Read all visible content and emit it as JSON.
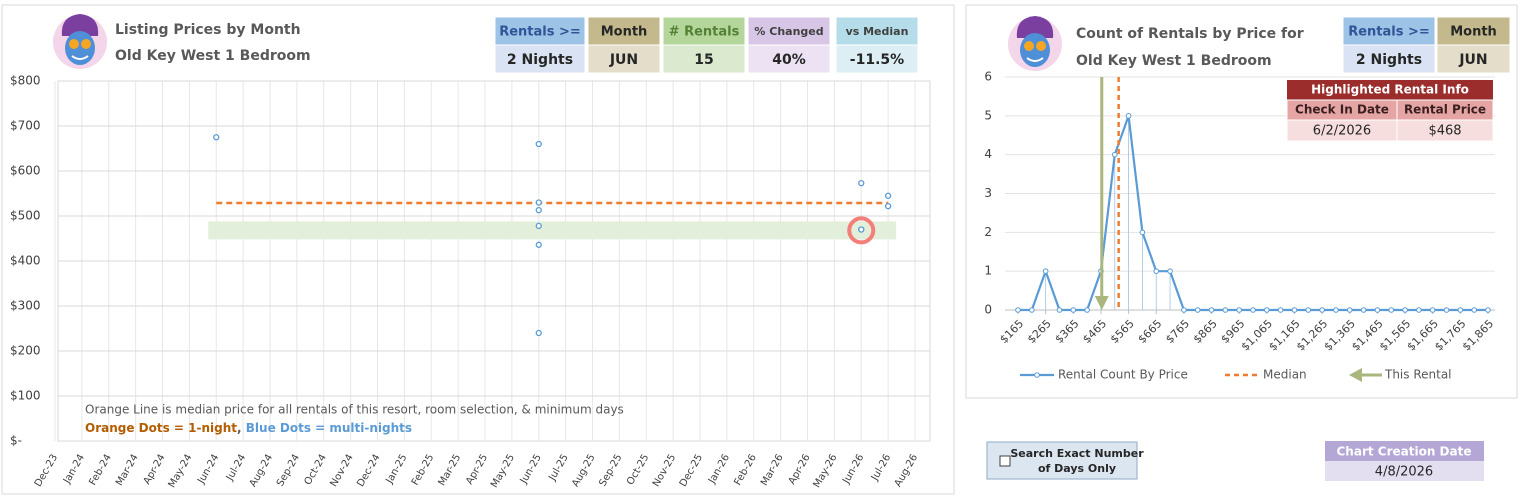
{
  "left_header": [
    {
      "label": "Rentals >=",
      "value": "2 Nights"
    },
    {
      "label": "Month",
      "value": "JUN"
    },
    {
      "label": "# Rentals",
      "value": "15"
    },
    {
      "label": "% Changed",
      "value": "40%"
    },
    {
      "label": "vs Median",
      "value": "-11.5%"
    }
  ],
  "right_header": [
    {
      "label": "Rentals >=",
      "value": "2 Nights"
    },
    {
      "label": "Month",
      "value": "JUN"
    }
  ],
  "highlighted_rental": {
    "title": "Highlighted Rental Info",
    "headers": [
      "Check In Date",
      "Rental Price"
    ],
    "row": [
      "6/2/2026",
      "$468"
    ]
  },
  "search_option": {
    "label_lines": [
      "Search Exact Number",
      "of Days Only"
    ]
  },
  "creation": {
    "label": "Chart Creation Date",
    "value": "4/8/2026"
  },
  "chart_data": [
    {
      "type": "scatter",
      "title": "Listing Prices by Month",
      "subtitle": "Old Key West 1 Bedroom",
      "categories": [
        "Dec-23",
        "Jan-24",
        "Feb-24",
        "Mar-24",
        "Apr-24",
        "May-24",
        "Jun-24",
        "Jul-24",
        "Aug-24",
        "Sep-24",
        "Oct-24",
        "Nov-24",
        "Dec-24",
        "Jan-25",
        "Feb-25",
        "Mar-25",
        "Apr-25",
        "May-25",
        "Jun-25",
        "Jul-25",
        "Aug-25",
        "Sep-25",
        "Oct-25",
        "Nov-25",
        "Dec-25",
        "Jan-26",
        "Feb-26",
        "Mar-26",
        "Apr-26",
        "May-26",
        "Jun-26",
        "Jul-26",
        "Aug-26"
      ],
      "series": [
        {
          "name": "Blue Dots",
          "color": "#5b9bd5",
          "x": [
            "Jun-24",
            "Jun-25",
            "Jun-25",
            "Jun-25",
            "Jun-25",
            "Jun-25",
            "Jun-25",
            "Jun-26",
            "Jun-26",
            "Jun-26",
            "Jul-26",
            "Jul-26"
          ],
          "values": [
            675,
            660,
            530,
            513,
            478,
            436,
            240,
            573,
            470,
            470,
            522,
            545
          ]
        }
      ],
      "median": 529,
      "median_color": "#ed7d31",
      "highlight": {
        "x": "Jun-26",
        "value": 468
      },
      "ylim": [
        0,
        800
      ],
      "yticks": [
        {
          "value": 0,
          "label": "$-"
        },
        {
          "value": 100,
          "label": "$100"
        },
        {
          "value": 200,
          "label": "$200"
        },
        {
          "value": 300,
          "label": "$300"
        },
        {
          "value": 400,
          "label": "$400"
        },
        {
          "value": 500,
          "label": "$500"
        },
        {
          "value": 600,
          "label": "$600"
        },
        {
          "value": 700,
          "label": "$700"
        },
        {
          "value": 800,
          "label": "$800"
        }
      ],
      "grid": true,
      "notes": [
        "Orange Line is median price for all rentals of this resort, room selection, & minimum days",
        "Orange Dots = 1-night",
        ", ",
        "Blue Dots = multi-nights"
      ]
    },
    {
      "type": "line",
      "title": "Count of Rentals by Price for",
      "subtitle": "Old Key West 1 Bedroom",
      "x": [
        165,
        215,
        265,
        315,
        365,
        415,
        465,
        515,
        565,
        615,
        665,
        715,
        765,
        815,
        865,
        915,
        965,
        1015,
        1065,
        1115,
        1165,
        1215,
        1265,
        1315,
        1365,
        1415,
        1465,
        1515,
        1565,
        1615,
        1665,
        1715,
        1765,
        1815,
        1865
      ],
      "series": [
        {
          "name": "Rental Count By Price",
          "color": "#5b9bd5",
          "values": [
            0,
            0,
            1,
            0,
            0,
            0,
            1,
            4,
            5,
            2,
            1,
            1,
            0,
            0,
            0,
            0,
            0,
            0,
            0,
            0,
            0,
            0,
            0,
            0,
            0,
            0,
            0,
            0,
            0,
            0,
            0,
            0,
            0,
            0,
            0
          ]
        }
      ],
      "median": 529,
      "median_label": "Median",
      "median_color": "#ed7d31",
      "this_rental": 468,
      "this_rental_label": "This Rental",
      "this_rental_color": "#a9b77f",
      "xlim": [
        165,
        1865
      ],
      "xticks": [
        {
          "value": 165,
          "label": "$165"
        },
        {
          "value": 265,
          "label": "$265"
        },
        {
          "value": 365,
          "label": "$365"
        },
        {
          "value": 465,
          "label": "$465"
        },
        {
          "value": 565,
          "label": "$565"
        },
        {
          "value": 665,
          "label": "$665"
        },
        {
          "value": 765,
          "label": "$765"
        },
        {
          "value": 865,
          "label": "$865"
        },
        {
          "value": 965,
          "label": "$965"
        },
        {
          "value": 1065,
          "label": "$1,065"
        },
        {
          "value": 1165,
          "label": "$1,165"
        },
        {
          "value": 1265,
          "label": "$1,265"
        },
        {
          "value": 1365,
          "label": "$1,365"
        },
        {
          "value": 1465,
          "label": "$1,465"
        },
        {
          "value": 1565,
          "label": "$1,565"
        },
        {
          "value": 1665,
          "label": "$1,665"
        },
        {
          "value": 1765,
          "label": "$1,765"
        },
        {
          "value": 1865,
          "label": "$1,865"
        }
      ],
      "ylim": [
        0,
        6
      ],
      "yticks": [
        0,
        1,
        2,
        3,
        4,
        5,
        6
      ],
      "grid": true
    }
  ]
}
